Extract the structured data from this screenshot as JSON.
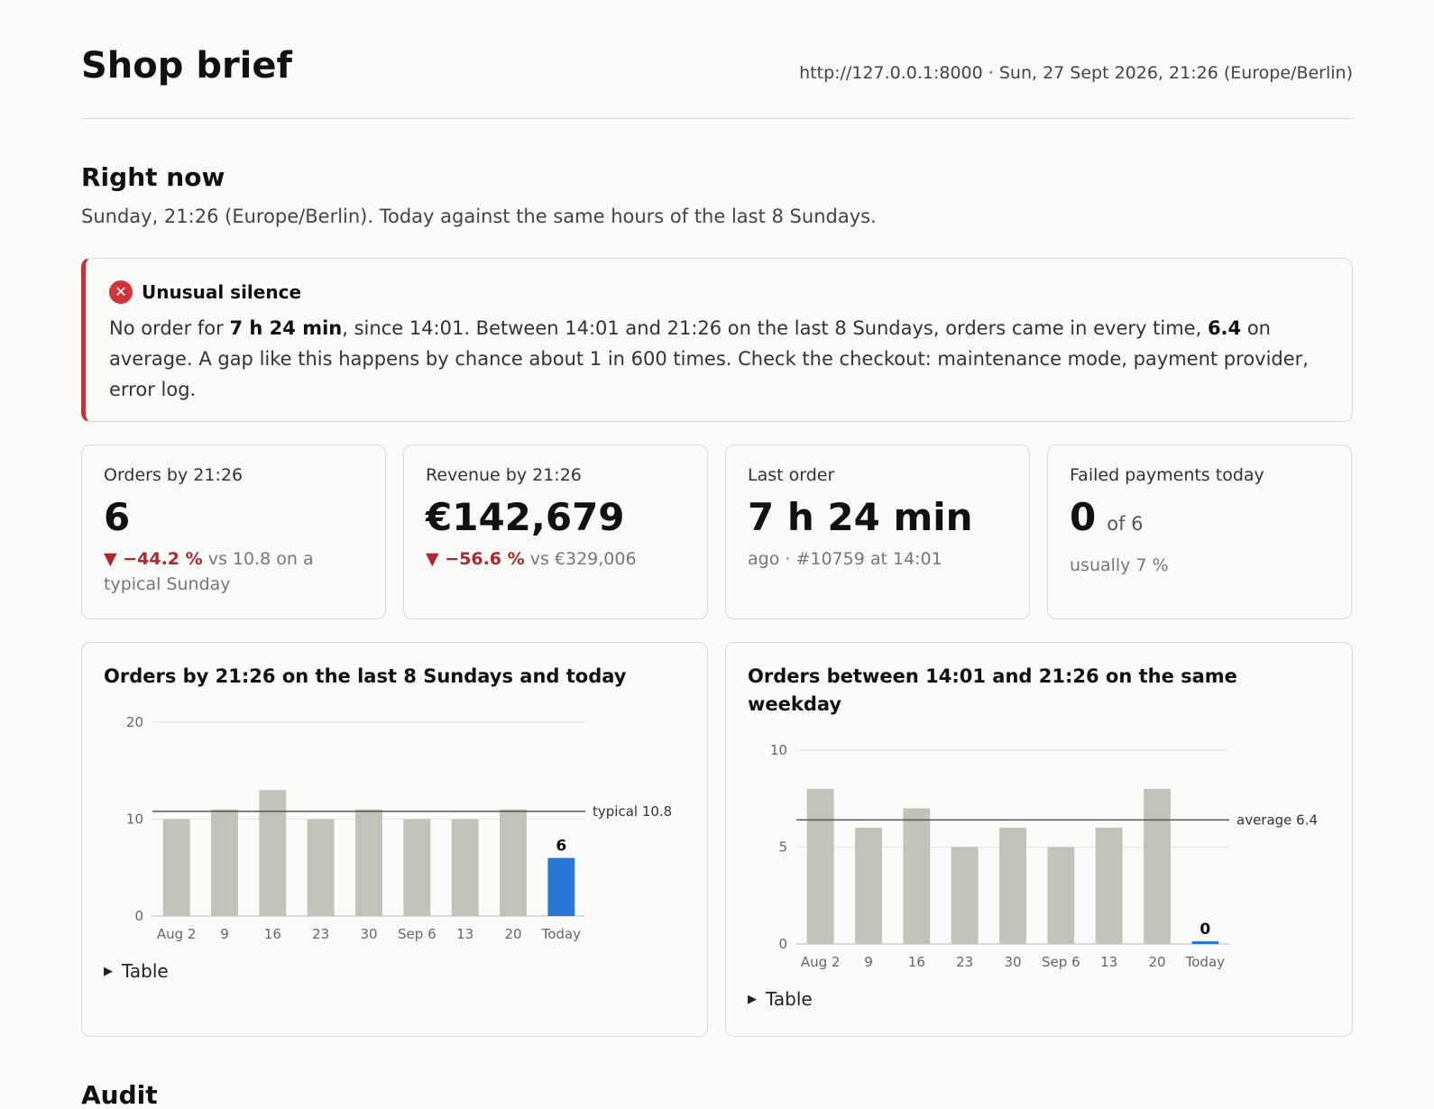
{
  "header": {
    "title": "Shop brief",
    "meta": "http://127.0.0.1:8000 · Sun, 27 Sept 2026, 21:26 (Europe/Berlin)"
  },
  "section": {
    "title": "Right now",
    "lede": "Sunday, 21:26 (Europe/Berlin). Today against the same hours of the last 8 Sundays."
  },
  "alert": {
    "icon": "close-icon",
    "color": "#c83237",
    "title": "Unusual silence",
    "body_pre": "No order for ",
    "body_bold1": "7 h 24 min",
    "body_mid": ", since 14:01. Between 14:01 and 21:26 on the last 8 Sundays, orders came in every time, ",
    "body_bold2": "6.4",
    "body_post": " on average. A gap like this happens by chance about 1 in 600 times. Check the checkout: maintenance mode, payment provider, error log."
  },
  "kpis": {
    "orders": {
      "label": "Orders by 21:26",
      "value": "6",
      "delta": "▼ −44.2 %",
      "note": " vs 10.8 on a typical Sunday"
    },
    "revenue": {
      "label": "Revenue by 21:26",
      "value": "€142,679",
      "delta": "▼ −56.6 %",
      "note": " vs €329,006"
    },
    "last_order": {
      "label": "Last order",
      "value": "7 h 24 min",
      "note": "ago · #10759 at 14:01"
    },
    "failed": {
      "label": "Failed payments today",
      "value": "0",
      "of": "of 6",
      "note": "usually 7 %"
    }
  },
  "table_toggle": "Table",
  "audit_title": "Audit",
  "colors": {
    "bar": "#c2c2b8",
    "today": "#2a78d6",
    "negative": "#b0262c"
  },
  "chart_data": [
    {
      "type": "bar",
      "title": "Orders by 21:26 on the last 8 Sundays and today",
      "categories": [
        "Aug 2",
        "9",
        "16",
        "23",
        "30",
        "Sep 6",
        "13",
        "20",
        "Today"
      ],
      "values": [
        10,
        11,
        13,
        10,
        11,
        10,
        10,
        11,
        6
      ],
      "highlight_label": "6",
      "reference": {
        "label": "typical 10.8",
        "value": 10.8
      },
      "yticks": [
        "0",
        "10",
        "20"
      ],
      "ylim": [
        0,
        20
      ],
      "grid": true
    },
    {
      "type": "bar",
      "title": "Orders between 14:01 and 21:26 on the same weekday",
      "categories": [
        "Aug 2",
        "9",
        "16",
        "23",
        "30",
        "Sep 6",
        "13",
        "20",
        "Today"
      ],
      "values": [
        8,
        6,
        7,
        5,
        6,
        5,
        6,
        8,
        0
      ],
      "highlight_label": "0",
      "reference": {
        "label": "average 6.4",
        "value": 6.4
      },
      "yticks": [
        "0",
        "5",
        "10"
      ],
      "ylim": [
        0,
        10
      ],
      "grid": true
    }
  ]
}
